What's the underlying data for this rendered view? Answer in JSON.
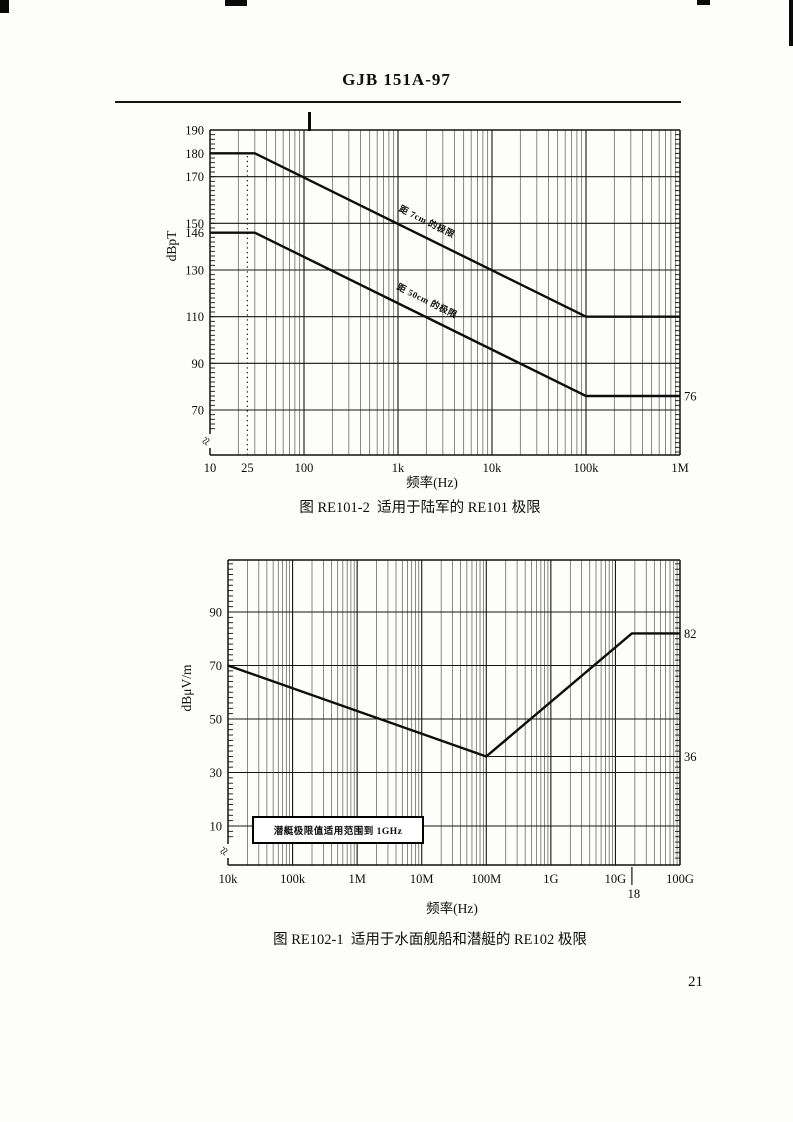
{
  "page": {
    "header_title": "GJB 151A-97",
    "page_number": "21"
  },
  "chart_data": [
    {
      "type": "line",
      "x_scale": "log",
      "xlim": [
        10,
        1000000
      ],
      "xlabel": "频率(Hz)",
      "ylabel": "dBpT",
      "caption": "图 RE101-2  适用于陆军的 RE101 极限",
      "x_ticks": [
        {
          "f": 10,
          "label": "10"
        },
        {
          "f": 25,
          "label": "25"
        },
        {
          "f": 100,
          "label": "100"
        },
        {
          "f": 1000,
          "label": "1k"
        },
        {
          "f": 10000,
          "label": "10k"
        },
        {
          "f": 100000,
          "label": "100k"
        },
        {
          "f": 1000000,
          "label": "1M"
        }
      ],
      "y_ticks": [
        {
          "v": 190,
          "label": "190"
        },
        {
          "v": 180,
          "label": "180"
        },
        {
          "v": 170,
          "label": "170"
        },
        {
          "v": 150,
          "label": "150"
        },
        {
          "v": 146,
          "label": "146"
        },
        {
          "v": 130,
          "label": "130"
        },
        {
          "v": 110,
          "label": "110"
        },
        {
          "v": 90,
          "label": "90"
        },
        {
          "v": 70,
          "label": "70"
        }
      ],
      "y_gridlines": [
        170,
        150,
        130,
        110,
        90,
        70
      ],
      "dotted_vline_hz": 25,
      "dotted_vline_top_v": 180,
      "series": [
        {
          "name": "距 7cm 的极限",
          "points": [
            [
              10,
              180
            ],
            [
              30,
              180
            ],
            [
              100000,
              110
            ],
            [
              1000000,
              110
            ]
          ]
        },
        {
          "name": "距 50cm 的极限",
          "points": [
            [
              10,
              146
            ],
            [
              30,
              146
            ],
            [
              100000,
              76
            ],
            [
              1000000,
              76
            ]
          ]
        }
      ],
      "right_value_labels": [
        {
          "v": 76,
          "label": "76"
        }
      ]
    },
    {
      "type": "line",
      "x_scale": "log",
      "xlim": [
        10000,
        100000000000
      ],
      "xlabel": "频率(Hz)",
      "ylabel": "dBμV/m",
      "caption": "图 RE102-1  适用于水面舰船和潜艇的 RE102 极限",
      "x_ticks": [
        {
          "f": 10000,
          "label": "10k"
        },
        {
          "f": 100000,
          "label": "100k"
        },
        {
          "f": 1000000,
          "label": "1M"
        },
        {
          "f": 10000000,
          "label": "10M"
        },
        {
          "f": 100000000,
          "label": "100M"
        },
        {
          "f": 1000000000,
          "label": "1G"
        },
        {
          "f": 10000000000,
          "label": "10G"
        },
        {
          "f": 100000000000,
          "label": "100G"
        }
      ],
      "extra_x_marker": {
        "f": 18000000000,
        "label": "18"
      },
      "y_ticks": [
        {
          "v": 90,
          "label": "90"
        },
        {
          "v": 70,
          "label": "70"
        },
        {
          "v": 50,
          "label": "50"
        },
        {
          "v": 30,
          "label": "30"
        },
        {
          "v": 10,
          "label": "10"
        }
      ],
      "y_gridlines": [
        90,
        70,
        50,
        30,
        10
      ],
      "series": [
        {
          "points": [
            [
              10000,
              70
            ],
            [
              100000000,
              36
            ],
            [
              18000000000,
              82
            ],
            [
              100000000000,
              82
            ]
          ]
        }
      ],
      "reference_lines": [
        {
          "v": 36,
          "from": 100000000,
          "to": 100000000000
        }
      ],
      "right_value_labels": [
        {
          "v": 82,
          "label": "82"
        },
        {
          "v": 36,
          "label": "36"
        }
      ],
      "note": "潜艇极限值适用范围到 1GHz"
    }
  ]
}
